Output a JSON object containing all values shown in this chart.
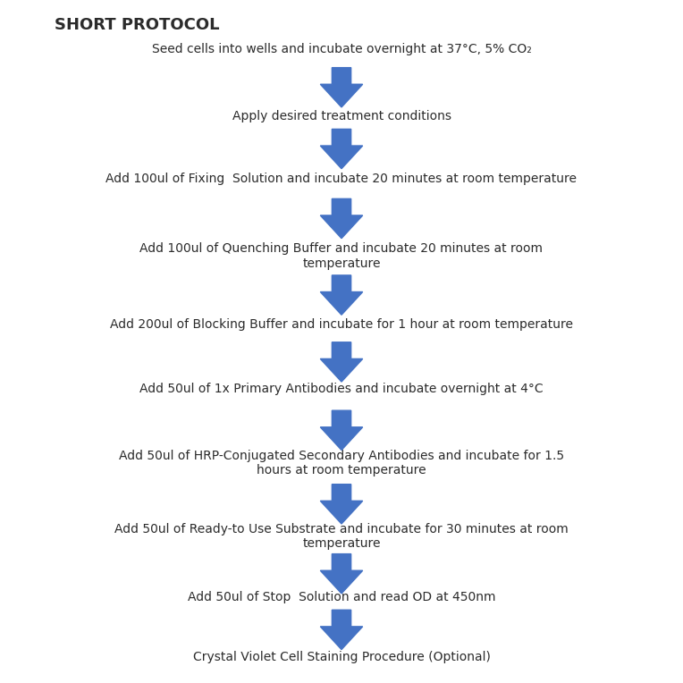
{
  "title": "SHORT PROTOCOL",
  "bg_color": "#ffffff",
  "text_color": "#2b2b2b",
  "arrow_color": "#4472C4",
  "steps": [
    "Seed cells into wells and incubate overnight at 37°C, 5% CO₂",
    "Apply des​ired treatment conditions",
    "Add 100ul of Fixing  Solution and incubate 20 minutes at room temperature",
    "Add 100ul of Quenching Buffer and incubate 20 minutes at room\ntemperature",
    "Add 200ul of Blocking Buffer and incubate for 1 hour at room temperature",
    "Add 50ul of 1x Primary Antibodies and incubate overnight at 4°C",
    "Add 50ul of HRP-Conjugated Secondary Antibodies and incubate for 1.5\nhours at room temperature",
    "Add 50ul of Ready-to Use Substrate and incubate for 30 minutes at room\ntemperature",
    "Add 50ul of Stop  Solution and read OD at 450nm",
    "Crystal Violet Cell Staining Procedure (Optional)"
  ],
  "step_fontsize": 10,
  "title_fontsize": 13,
  "figsize": [
    7.64,
    7.64
  ],
  "dpi": 100
}
